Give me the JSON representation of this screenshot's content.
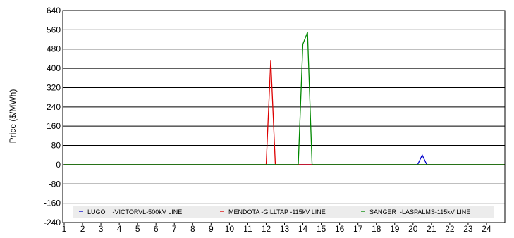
{
  "chart_data": {
    "type": "line",
    "title": "",
    "xlabel": "",
    "ylabel": "Price ($/MWh)",
    "ylim": [
      -240,
      640
    ],
    "xlim": [
      1,
      25
    ],
    "yticks": [
      640,
      560,
      480,
      400,
      320,
      240,
      160,
      80,
      0,
      -80,
      -160,
      -240
    ],
    "xticks": [
      1,
      2,
      3,
      4,
      5,
      6,
      7,
      8,
      9,
      10,
      11,
      12,
      13,
      14,
      15,
      16,
      17,
      18,
      19,
      20,
      21,
      22,
      23,
      24
    ],
    "grid": "horizontal",
    "legend_position": "bottom",
    "series": [
      {
        "name": "LUGO    -VICTORVL-500kV LINE",
        "color": "#0000cc",
        "points": [
          [
            1,
            0
          ],
          [
            20.25,
            0
          ],
          [
            20.5,
            40
          ],
          [
            20.75,
            0
          ],
          [
            25,
            0
          ]
        ]
      },
      {
        "name": "MENDOTA -GILLTAP -115kV LINE",
        "color": "#dd0000",
        "points": [
          [
            1,
            0
          ],
          [
            12.0,
            0
          ],
          [
            12.25,
            435
          ],
          [
            12.5,
            0
          ],
          [
            13.75,
            0
          ],
          [
            14.0,
            0
          ],
          [
            14.5,
            0
          ],
          [
            25,
            0
          ]
        ]
      },
      {
        "name": "SANGER  -LASPALMS-115kV LINE",
        "color": "#008800",
        "points": [
          [
            1,
            0
          ],
          [
            13.75,
            0
          ],
          [
            14.0,
            500
          ],
          [
            14.25,
            550
          ],
          [
            14.5,
            0
          ],
          [
            25,
            0
          ]
        ]
      }
    ]
  }
}
